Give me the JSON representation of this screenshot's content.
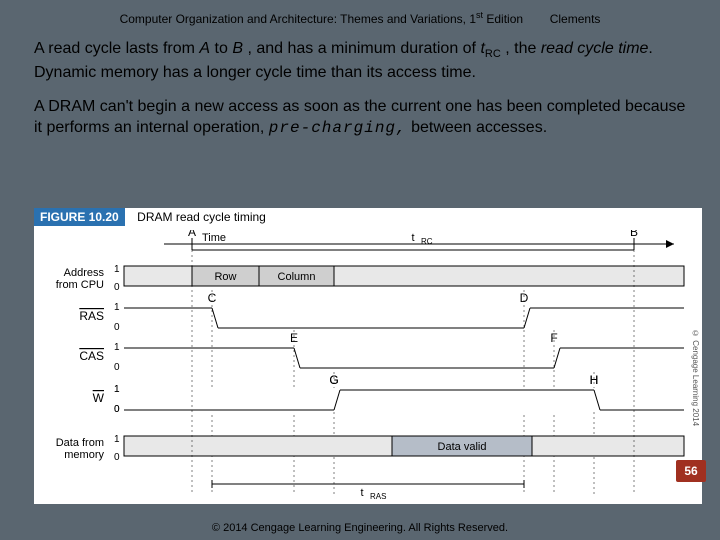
{
  "header": {
    "title_left": "Computer Organization and Architecture: Themes and Variations, 1",
    "title_sup": "st",
    "title_edition": " Edition",
    "author": "Clements"
  },
  "body": {
    "p1_a": "A read cycle lasts from ",
    "p1_b": " to ",
    "p1_c": ", and has a minimum duration of ",
    "p1_d": ", the ",
    "p1_e": ". Dynamic memory has a longer cycle time than its access time.",
    "A_letter": "A",
    "B_letter": "B",
    "t_var": "t",
    "rc_sub": "RC",
    "read_cycle_time": "read cycle time",
    "p2_a": "A DRAM can't begin a new access as soon as the current one has been completed because it performs an internal operation, ",
    "p2_b": " between accesses.",
    "precharge": "pre-charging,"
  },
  "figure": {
    "number": "FIGURE 10.20",
    "caption": "DRAM read cycle timing",
    "time_label": "Time",
    "trc_label": "tRC",
    "signals": {
      "addr": {
        "name": "Address",
        "from": "from CPU",
        "bit1": "1",
        "bit0": "0",
        "row": "Row",
        "col": "Column"
      },
      "ras": {
        "name": "RAS",
        "bit1": "1",
        "bit0": "0"
      },
      "cas": {
        "name": "CAS",
        "bit1": "1",
        "bit0": "0"
      },
      "w": {
        "name": "W",
        "bit1": "1",
        "bit0": "0"
      },
      "data": {
        "name": "Data from",
        "from": "memory",
        "bit1": "1",
        "bit0": "0",
        "valid": "Data valid"
      }
    },
    "points": {
      "A": "A",
      "B": "B",
      "C": "C",
      "D": "D",
      "E": "E",
      "F": "F",
      "G": "G",
      "H": "H"
    },
    "tras_label": "tRAS",
    "side_copyright": "© Cengage Learning 2014"
  },
  "footer": {
    "copyright": "© 2014 Cengage Learning Engineering. All Rights Reserved."
  },
  "page": {
    "number": "56"
  },
  "layout": {
    "xA": 158,
    "xB": 600,
    "xRow0": 158,
    "xRow1": 225,
    "xCol0": 225,
    "xCol1": 300,
    "xC": 178,
    "xD": 490,
    "xE": 260,
    "xF": 520,
    "xG": 300,
    "xH": 560,
    "xValid0": 358,
    "xValid1": 498,
    "yAddr": 36,
    "yRas": 78,
    "yCas": 118,
    "yW": 160,
    "yData": 206,
    "h": 20,
    "colors": {
      "line": "#000",
      "fill_gray": "#cfcfcf",
      "fill_stripes": "#e8e8e8",
      "valid": "#b5bdc8"
    }
  }
}
